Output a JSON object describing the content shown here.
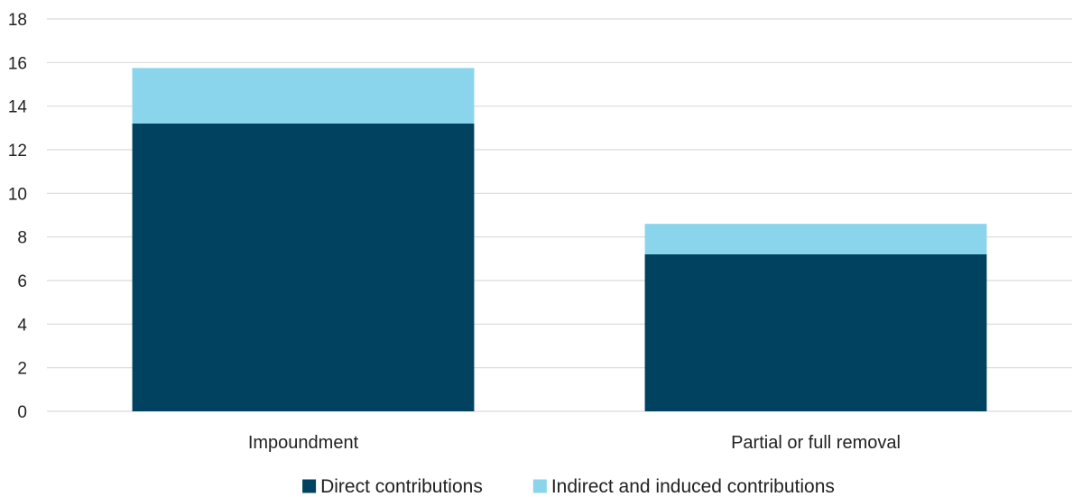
{
  "chart_data": {
    "type": "bar",
    "stacked": true,
    "title": "",
    "xlabel": "",
    "ylabel": "",
    "categories": [
      "Impoundment",
      "Partial or full removal"
    ],
    "series": [
      {
        "name": "Direct contributions",
        "color": "#00425f",
        "values": [
          13.2,
          7.2
        ]
      },
      {
        "name": "Indirect and induced contributions",
        "color": "#8ad4ec",
        "values": [
          2.55,
          1.4
        ]
      }
    ],
    "ylim": [
      0,
      18
    ],
    "yticks": [
      "0",
      "2",
      "4",
      "6",
      "8",
      "10",
      "12",
      "14",
      "16",
      "18"
    ],
    "grid": true,
    "legend_position": "bottom-center",
    "gridline_color": "#d9d9d9"
  }
}
